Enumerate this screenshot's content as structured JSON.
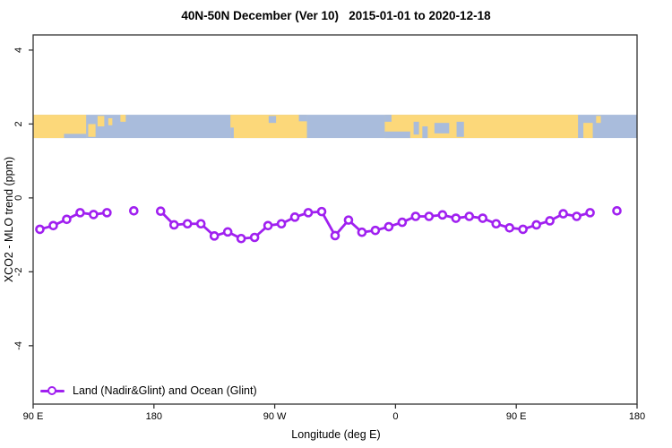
{
  "chart_data": {
    "type": "line",
    "title": "40N-50N December (Ver 10)   2015-01-01 to 2020-12-18",
    "xlabel": "Longitude (deg E)",
    "ylabel": "XCO2 - MLO trend (ppm)",
    "xlim": [
      90,
      540
    ],
    "ylim": [
      -5.58,
      4.41
    ],
    "grid": false,
    "axis_color": "#333333",
    "x_ticks": [
      {
        "v": 90,
        "label": "90 E"
      },
      {
        "v": 180,
        "label": "180"
      },
      {
        "v": 270,
        "label": "90 W"
      },
      {
        "v": 360,
        "label": "0"
      },
      {
        "v": 450,
        "label": "90 E"
      },
      {
        "v": 540,
        "label": "180"
      }
    ],
    "y_ticks": [
      {
        "v": 4,
        "label": "4"
      },
      {
        "v": 2,
        "label": "2"
      },
      {
        "v": 0,
        "label": "0"
      },
      {
        "v": -2,
        "label": "-2"
      },
      {
        "v": -4,
        "label": "-4"
      }
    ],
    "legend": {
      "position": "bottom-left",
      "label": "Land (Nadir&Glint) and Ocean (Glint)",
      "marker": "open-circle",
      "color": "#A020F0"
    },
    "series": [
      {
        "name": "Land (Nadir&Glint) and Ocean (Glint)",
        "color": "#A020F0",
        "marker": "open-circle",
        "gap_threshold": 12,
        "points": [
          [
            95,
            -0.85
          ],
          [
            105,
            -0.75
          ],
          [
            115,
            -0.58
          ],
          [
            125,
            -0.4
          ],
          [
            135,
            -0.45
          ],
          [
            145,
            -0.4
          ],
          [
            165,
            -0.35
          ],
          [
            185,
            -0.36
          ],
          [
            195,
            -0.73
          ],
          [
            205,
            -0.7
          ],
          [
            215,
            -0.7
          ],
          [
            225,
            -1.03
          ],
          [
            235,
            -0.92
          ],
          [
            245,
            -1.1
          ],
          [
            255,
            -1.07
          ],
          [
            265,
            -0.75
          ],
          [
            275,
            -0.7
          ],
          [
            285,
            -0.52
          ],
          [
            295,
            -0.4
          ],
          [
            305,
            -0.37
          ],
          [
            315,
            -1.02
          ],
          [
            325,
            -0.6
          ],
          [
            335,
            -0.93
          ],
          [
            345,
            -0.88
          ],
          [
            355,
            -0.78
          ],
          [
            365,
            -0.66
          ],
          [
            375,
            -0.5
          ],
          [
            385,
            -0.5
          ],
          [
            395,
            -0.46
          ],
          [
            405,
            -0.55
          ],
          [
            415,
            -0.5
          ],
          [
            425,
            -0.55
          ],
          [
            435,
            -0.7
          ],
          [
            445,
            -0.81
          ],
          [
            455,
            -0.85
          ],
          [
            465,
            -0.73
          ],
          [
            475,
            -0.62
          ],
          [
            485,
            -0.43
          ],
          [
            495,
            -0.5
          ],
          [
            505,
            -0.4
          ],
          [
            525,
            -0.35
          ]
        ]
      }
    ],
    "map_band": {
      "description": "world coastline strip for 40N-50N drawn across plot at y ~ 1.6 to 2.25",
      "y_range": [
        1.62,
        2.25
      ],
      "ocean_color": "#A9BCDC",
      "land_color": "#FCD87A",
      "patches": [
        {
          "type": "land",
          "from": 90,
          "to": 129.5,
          "ft": 0,
          "fb": 1
        },
        {
          "type": "ocean",
          "from": 113,
          "to": 129.5,
          "ft": 0.82,
          "fb": 1
        },
        {
          "type": "land",
          "from": 131,
          "to": 136.5,
          "ft": 0.4,
          "fb": 0.95
        },
        {
          "type": "land",
          "from": 138,
          "to": 143,
          "ft": 0.05,
          "fb": 0.5
        },
        {
          "type": "land",
          "from": 146,
          "to": 149,
          "ft": 0.15,
          "fb": 0.45
        },
        {
          "type": "land",
          "from": 155,
          "to": 159,
          "ft": 0,
          "fb": 0.3
        },
        {
          "type": "land",
          "from": 237,
          "to": 294,
          "ft": 0,
          "fb": 1
        },
        {
          "type": "ocean",
          "from": 237,
          "to": 239.5,
          "ft": 0.55,
          "fb": 1
        },
        {
          "type": "ocean",
          "from": 265.5,
          "to": 271,
          "ft": 0.05,
          "fb": 0.35
        },
        {
          "type": "ocean",
          "from": 288,
          "to": 294,
          "ft": 0,
          "fb": 0.28
        },
        {
          "type": "land",
          "from": 352,
          "to": 496,
          "ft": 0,
          "fb": 1
        },
        {
          "type": "ocean",
          "from": 352,
          "to": 357,
          "ft": 0,
          "fb": 0.3
        },
        {
          "type": "ocean",
          "from": 352,
          "to": 371,
          "ft": 0.72,
          "fb": 1
        },
        {
          "type": "ocean",
          "from": 373.5,
          "to": 377.5,
          "ft": 0.3,
          "fb": 0.85
        },
        {
          "type": "ocean",
          "from": 380,
          "to": 384,
          "ft": 0.5,
          "fb": 1
        },
        {
          "type": "ocean",
          "from": 389,
          "to": 400,
          "ft": 0.35,
          "fb": 0.8
        },
        {
          "type": "ocean",
          "from": 405.5,
          "to": 411,
          "ft": 0.3,
          "fb": 0.95
        },
        {
          "type": "land",
          "from": 500,
          "to": 507,
          "ft": 0.35,
          "fb": 1
        },
        {
          "type": "land",
          "from": 509.5,
          "to": 513,
          "ft": 0.05,
          "fb": 0.35
        }
      ]
    }
  }
}
